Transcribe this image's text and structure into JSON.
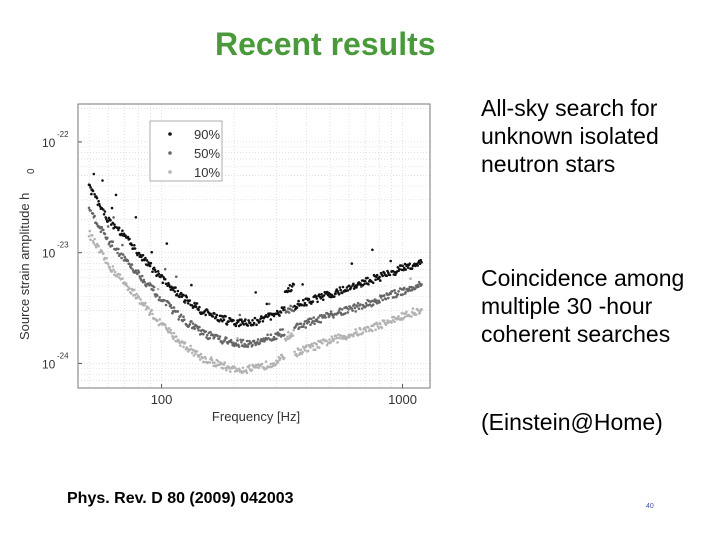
{
  "slide": {
    "title": "Recent results",
    "bullets": [
      "All-sky search for unknown isolated neutron stars",
      "Coincidence among multiple 30 -hour coherent searches",
      "(Einstein@Home)"
    ],
    "citation": "Phys. Rev. D 80 (2009) 042003",
    "page_number": "40"
  },
  "chart_data": {
    "type": "scatter",
    "title": "",
    "xlabel": "Frequency [Hz]",
    "ylabel": "Source strain amplitude h",
    "ylabel_subscript": "0",
    "xscale": "log",
    "yscale": "log",
    "xlim": [
      45,
      1300
    ],
    "ylim": [
      6e-25,
      2.2e-22
    ],
    "xticks": [
      {
        "value": 100,
        "label": "100"
      },
      {
        "value": 1000,
        "label": "1000"
      }
    ],
    "yticks": [
      {
        "value": 1e-22,
        "base": "10",
        "exp": "-22"
      },
      {
        "value": 1e-23,
        "base": "10",
        "exp": "-23"
      },
      {
        "value": 1e-24,
        "base": "10",
        "exp": "-24"
      }
    ],
    "grid": true,
    "legend_position": "top-left",
    "series": [
      {
        "name": "90%",
        "color": "#111111",
        "x": [
          50,
          55,
          60,
          70,
          80,
          90,
          100,
          120,
          150,
          200,
          250,
          300,
          340,
          400,
          500,
          700,
          1000,
          1200
        ],
        "y": [
          4e-23,
          2.7e-23,
          2e-23,
          1.4e-23,
          1e-23,
          7.6e-24,
          5.9e-24,
          4.1e-24,
          2.9e-24,
          2.3e-24,
          2.4e-24,
          2.8e-24,
          3.2e-24,
          3.6e-24,
          4.2e-24,
          5.4e-24,
          7.2e-24,
          8.3e-24
        ]
      },
      {
        "name": "50%",
        "color": "#666666",
        "x": [
          50,
          55,
          60,
          70,
          80,
          90,
          100,
          120,
          150,
          200,
          250,
          300,
          340,
          400,
          500,
          700,
          1000,
          1200
        ],
        "y": [
          2.6e-23,
          1.75e-23,
          1.3e-23,
          9e-24,
          6.5e-24,
          4.9e-24,
          3.8e-24,
          2.6e-24,
          1.85e-24,
          1.5e-24,
          1.55e-24,
          1.8e-24,
          2.05e-24,
          2.3e-24,
          2.7e-24,
          3.4e-24,
          4.5e-24,
          5.2e-24
        ]
      },
      {
        "name": "10%",
        "color": "#b3b3b3",
        "x": [
          50,
          55,
          60,
          70,
          80,
          90,
          100,
          120,
          150,
          200,
          250,
          300,
          340,
          400,
          500,
          700,
          1000,
          1200
        ],
        "y": [
          1.5e-23,
          1.05e-23,
          7.8e-24,
          5.4e-24,
          3.9e-24,
          2.9e-24,
          2.25e-24,
          1.55e-24,
          1.1e-24,
          8.8e-25,
          9e-25,
          1.05e-24,
          1.2e-24,
          1.35e-24,
          1.6e-24,
          2e-24,
          2.65e-24,
          3.1e-24
        ]
      }
    ]
  }
}
